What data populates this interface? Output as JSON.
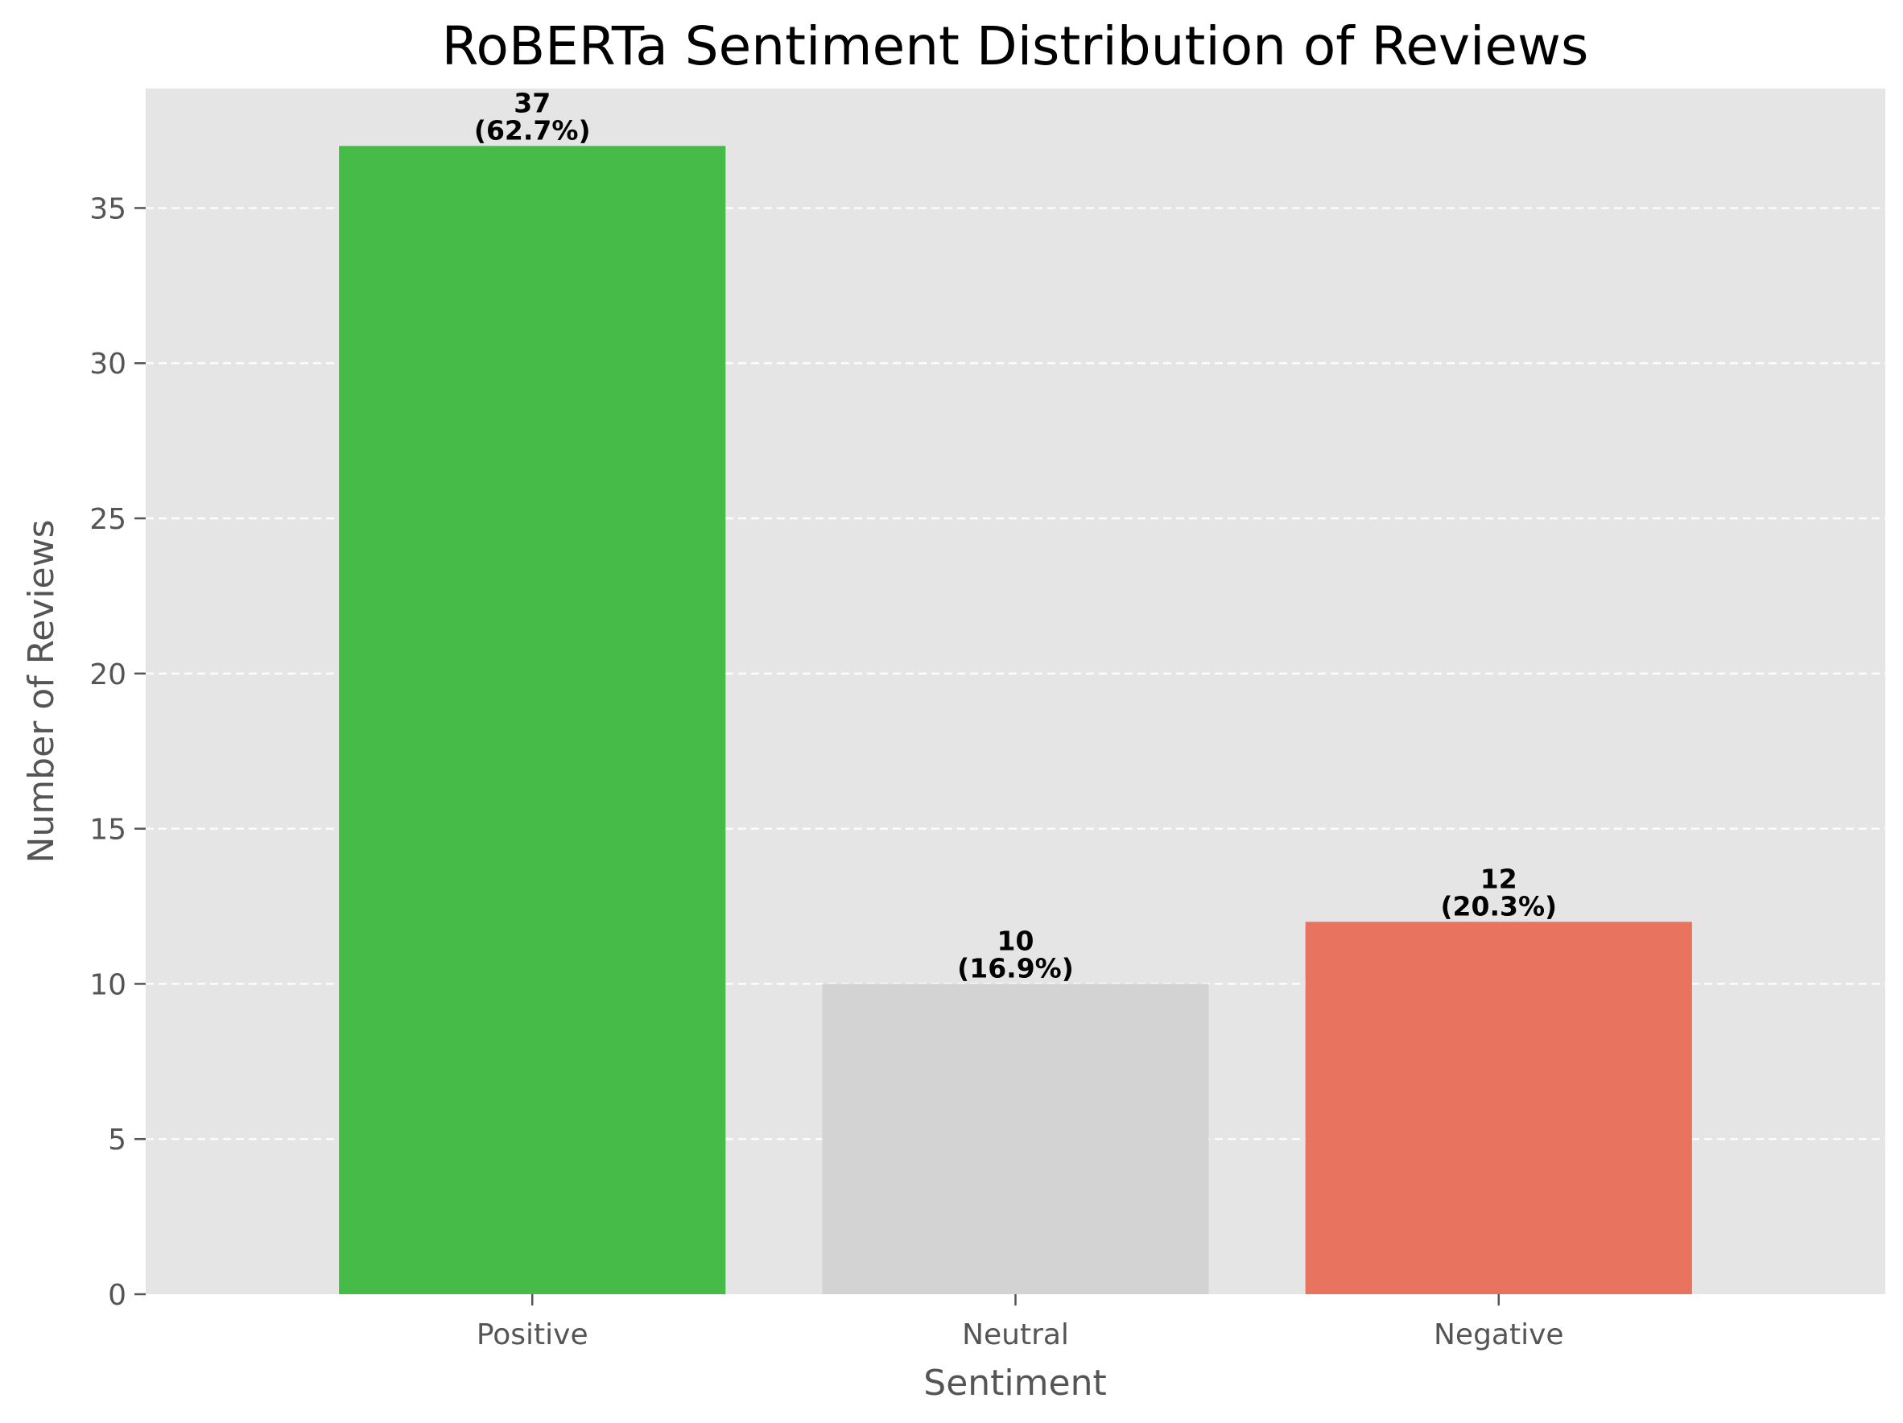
{
  "chart_data": {
    "type": "bar",
    "title": "RoBERTa Sentiment Distribution of Reviews",
    "xlabel": "Sentiment",
    "ylabel": "Number of Reviews",
    "categories": [
      "Positive",
      "Neutral",
      "Negative"
    ],
    "values": [
      37,
      10,
      12
    ],
    "percent_labels": [
      "(62.7%)",
      "(16.9%)",
      "(20.3%)"
    ],
    "colors": [
      "#47bb47",
      "#d3d3d3",
      "#e8735f"
    ],
    "ylim": [
      0,
      38.85
    ],
    "yticks": [
      0,
      5,
      10,
      15,
      20,
      25,
      30,
      35
    ],
    "grid": "y-dashed",
    "background": "#e5e5e5",
    "legend": "none"
  }
}
